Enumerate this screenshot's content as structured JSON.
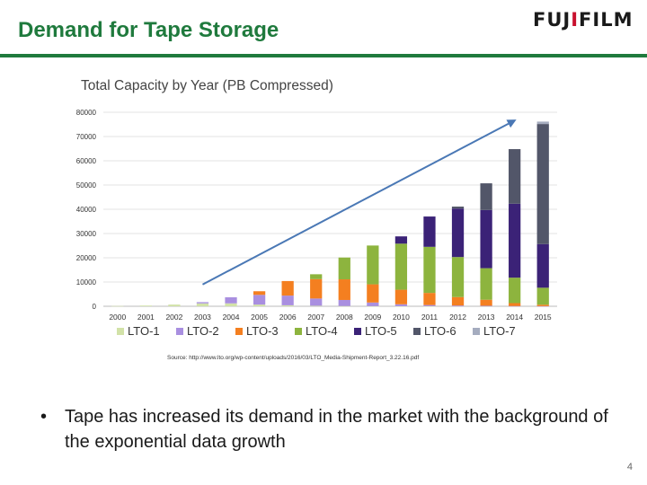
{
  "slide": {
    "title": "Demand for Tape Storage",
    "logo_text": "FUJIFILM",
    "source": "Source: http://www.lto.org/wp-content/uploads/2016/03/LTO_Media-Shipment-Report_3.22.16.pdf",
    "bullet": "Tape has increased its demand in the market with the background of the exponential data growth",
    "page_number": "4",
    "colors": {
      "title": "#1f7a3d",
      "rule": "#1f7a3d",
      "trend_arrow": "#4a78b5"
    }
  },
  "chart_data": {
    "type": "bar",
    "stacked": true,
    "title": "Total Capacity by Year (PB Compressed)",
    "xlabel": "",
    "ylabel": "",
    "ylim": [
      0,
      80000
    ],
    "yticks": [
      0,
      10000,
      20000,
      30000,
      40000,
      50000,
      60000,
      70000,
      80000
    ],
    "grid": true,
    "legend": "bottom",
    "categories": [
      "2000",
      "2001",
      "2002",
      "2003",
      "2004",
      "2005",
      "2006",
      "2007",
      "2008",
      "2009",
      "2010",
      "2011",
      "2012",
      "2013",
      "2014",
      "2015"
    ],
    "series": [
      {
        "name": "LTO-1",
        "color": "#d2e2a8",
        "values": [
          100,
          300,
          700,
          1200,
          1200,
          700,
          400,
          200,
          100,
          50,
          20,
          10,
          0,
          0,
          0,
          0
        ]
      },
      {
        "name": "LTO-2",
        "color": "#a98fe0",
        "values": [
          0,
          0,
          0,
          500,
          2500,
          4000,
          4000,
          3000,
          2500,
          1500,
          800,
          500,
          300,
          200,
          100,
          50
        ]
      },
      {
        "name": "LTO-3",
        "color": "#f47f20",
        "values": [
          0,
          0,
          0,
          0,
          0,
          1500,
          6000,
          8000,
          8500,
          7500,
          6000,
          5000,
          3500,
          2500,
          1200,
          600
        ]
      },
      {
        "name": "LTO-4",
        "color": "#8db43e",
        "values": [
          0,
          0,
          0,
          0,
          0,
          0,
          0,
          2000,
          9000,
          16000,
          19000,
          19000,
          16500,
          13000,
          10500,
          7000
        ]
      },
      {
        "name": "LTO-5",
        "color": "#3b2277",
        "values": [
          0,
          0,
          0,
          0,
          0,
          0,
          0,
          0,
          0,
          0,
          3000,
          12500,
          20000,
          24000,
          30500,
          18000
        ]
      },
      {
        "name": "LTO-6",
        "color": "#525669",
        "values": [
          0,
          0,
          0,
          0,
          0,
          0,
          0,
          0,
          0,
          0,
          0,
          0,
          800,
          11000,
          22500,
          49500
        ]
      },
      {
        "name": "LTO-7",
        "color": "#a5acbf",
        "values": [
          0,
          0,
          0,
          0,
          0,
          0,
          0,
          0,
          0,
          0,
          0,
          0,
          0,
          0,
          0,
          1000
        ]
      }
    ],
    "trend_arrow": {
      "from": {
        "x": "2003",
        "y": 9000
      },
      "to": {
        "x": "2014",
        "y": 77000
      }
    }
  }
}
